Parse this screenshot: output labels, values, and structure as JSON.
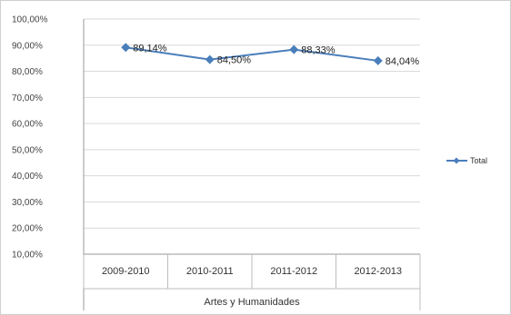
{
  "chart_data": {
    "type": "line",
    "categories": [
      "2009-2010",
      "2010-2011",
      "2011-2012",
      "2012-2013"
    ],
    "group_label": "Artes y Humanidades",
    "series": [
      {
        "name": "Total",
        "values": [
          89.14,
          84.5,
          88.33,
          84.04
        ],
        "labels": [
          "89,14%",
          "84,50%",
          "88,33%",
          "84,04%"
        ],
        "color": "#4a7ebb"
      }
    ],
    "y_ticks": [
      "10,00%",
      "20,00%",
      "30,00%",
      "40,00%",
      "50,00%",
      "60,00%",
      "70,00%",
      "80,00%",
      "90,00%",
      "100,00%"
    ],
    "ylim": [
      10,
      100
    ],
    "grid": true,
    "legend_position": "right"
  }
}
